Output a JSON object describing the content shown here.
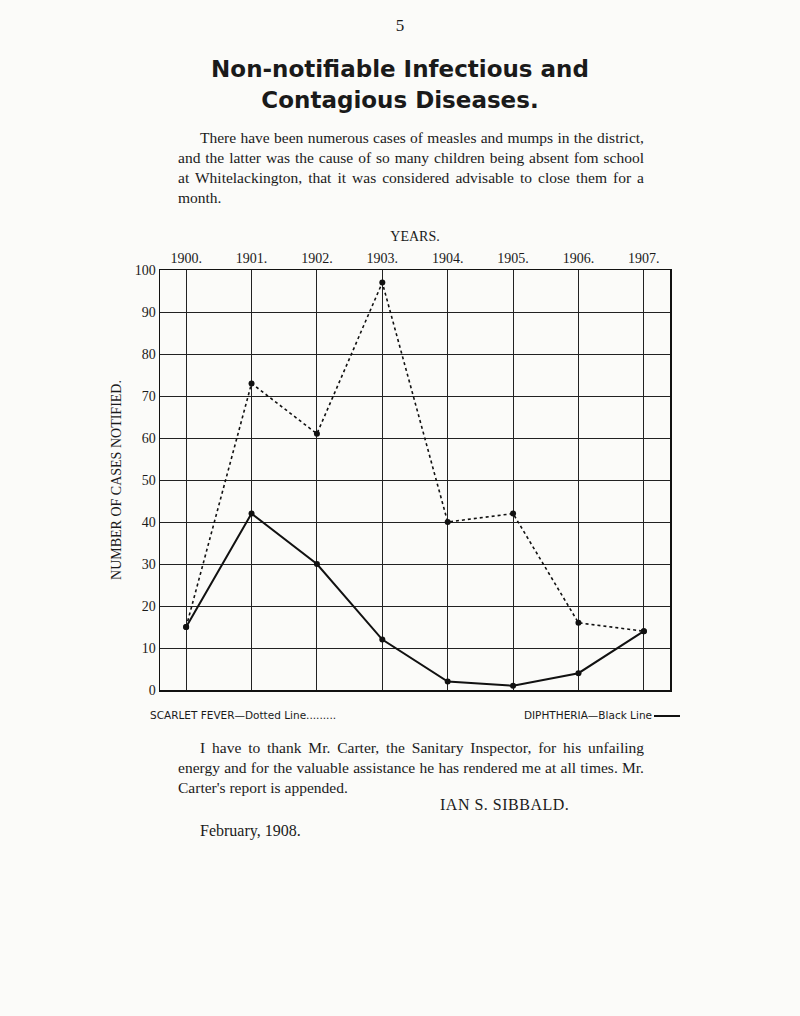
{
  "page_number": "5",
  "heading": [
    "Non-notifiable Infectious and",
    "Contagious Diseases."
  ],
  "paragraphs": [
    "There have been numerous cases of measles and mumps in the district, and the latter was the cause of so many children being absent fom school at Whitelackington, that it was considered advisable to close them for a month.",
    "I have to thank Mr. Carter, the Sanitary Inspector, for his unfailing energy and for the valuable assistance he has rendered me at all times. Mr. Carter's report is appended."
  ],
  "signature": "IAN S. SIBBALD.",
  "date": "February, 1908.",
  "chart_data": {
    "type": "line",
    "x_label": "YEARS.",
    "y_label": "NUMBER OF CASES NOTIFIED.",
    "x": [
      1900,
      1901,
      1902,
      1903,
      1904,
      1905,
      1906,
      1907
    ],
    "series": [
      {
        "name": "SCARLET FEVER—Dotted Line.........",
        "color": "#111111",
        "line_style": "dotted",
        "marker": "circle",
        "values": [
          15,
          73,
          61,
          97,
          40,
          42,
          16,
          14
        ]
      },
      {
        "name": "DIPHTHERIA—Black Line",
        "color": "#111111",
        "line_style": "solid",
        "marker": "circle",
        "values": [
          15,
          42,
          30,
          12,
          2,
          1,
          4,
          14
        ]
      }
    ],
    "xlim": [
      1899.6,
      1907.4
    ],
    "xticks": [
      {
        "value": 1900,
        "label": "1900."
      },
      {
        "value": 1901,
        "label": "1901."
      },
      {
        "value": 1902,
        "label": "1902."
      },
      {
        "value": 1903,
        "label": "1903."
      },
      {
        "value": 1904,
        "label": "1904."
      },
      {
        "value": 1905,
        "label": "1905."
      },
      {
        "value": 1906,
        "label": "1906."
      },
      {
        "value": 1907,
        "label": "1907."
      }
    ],
    "ylim": [
      0,
      100
    ],
    "yticks": [
      0,
      10,
      20,
      30,
      40,
      50,
      60,
      70,
      80,
      90,
      100
    ],
    "grid": true
  }
}
